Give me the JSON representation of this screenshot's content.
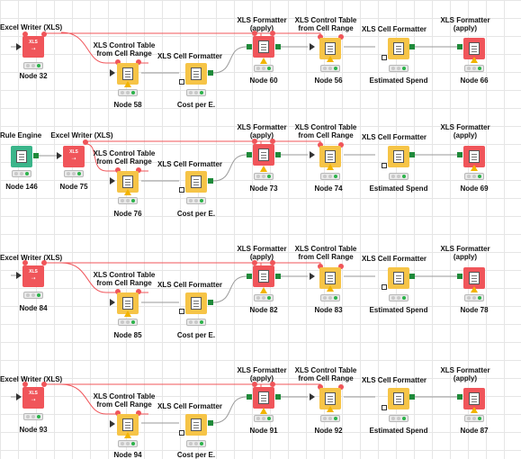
{
  "nodes": {
    "r1_writer_title": "Excel Writer (XLS)",
    "r1_writer_id": "Node 32",
    "r1_ctrl_title_1": "XLS Control Table",
    "r1_ctrl_title_2": "from Cell Range",
    "r1_ctrl_id": "Node 58",
    "r1_cellfmt_title": "XLS Cell Formatter",
    "r1_cellfmt_sub": "Cost per E.",
    "r1_apply_title_1": "XLS Formatter",
    "r1_apply_title_2": "(apply)",
    "r1_apply_id": "Node 60",
    "r1_ctrl2_title_1": "XLS Control Table",
    "r1_ctrl2_title_2": "from Cell Range",
    "r1_ctrl2_id": "Node 56",
    "r1_cellfmt2_title": "XLS Cell Formatter",
    "r1_cellfmt2_sub": "Estimated Spend",
    "r1_apply2_title_1": "XLS Formatter",
    "r1_apply2_title_2": "(apply)",
    "r1_apply2_id": "Node 66",
    "r2_rule_title": "Rule Engine",
    "r2_rule_id": "Node 146",
    "r2_writer_title": "Excel Writer (XLS)",
    "r2_writer_id": "Node 75",
    "r2_ctrl_title_1": "XLS Control Table",
    "r2_ctrl_title_2": "from Cell Range",
    "r2_ctrl_id": "Node 76",
    "r2_cellfmt_title": "XLS Cell Formatter",
    "r2_cellfmt_sub": "Cost per E.",
    "r2_apply_title_1": "XLS Formatter",
    "r2_apply_title_2": "(apply)",
    "r2_apply_id": "Node 73",
    "r2_ctrl2_title_1": "XLS Control Table",
    "r2_ctrl2_title_2": "from Cell Range",
    "r2_ctrl2_id": "Node 74",
    "r2_cellfmt2_title": "XLS Cell Formatter",
    "r2_cellfmt2_sub": "Estimated Spend",
    "r2_apply2_title_1": "XLS Formatter",
    "r2_apply2_title_2": "(apply)",
    "r2_apply2_id": "Node 69",
    "r3_writer_title": "Excel Writer (XLS)",
    "r3_writer_id": "Node 84",
    "r3_ctrl_title_1": "XLS Control Table",
    "r3_ctrl_title_2": "from Cell Range",
    "r3_ctrl_id": "Node 85",
    "r3_cellfmt_title": "XLS Cell Formatter",
    "r3_cellfmt_sub": "Cost per E.",
    "r3_apply_title_1": "XLS Formatter",
    "r3_apply_title_2": "(apply)",
    "r3_apply_id": "Node 82",
    "r3_ctrl2_title_1": "XLS Control Table",
    "r3_ctrl2_title_2": "from Cell Range",
    "r3_ctrl2_id": "Node 83",
    "r3_cellfmt2_title": "XLS Cell Formatter",
    "r3_cellfmt2_sub": "Estimated Spend",
    "r3_apply2_title_1": "XLS Formatter",
    "r3_apply2_title_2": "(apply)",
    "r3_apply2_id": "Node 78",
    "r4_writer_title": "Excel Writer (XLS)",
    "r4_writer_id": "Node 93",
    "r4_ctrl_title_1": "XLS Control Table",
    "r4_ctrl_title_2": "from Cell Range",
    "r4_ctrl_id": "Node 94",
    "r4_cellfmt_title": "XLS Cell Formatter",
    "r4_cellfmt_sub": "Cost per E.",
    "r4_apply_title_1": "XLS Formatter",
    "r4_apply_title_2": "(apply)",
    "r4_apply_id": "Node 91",
    "r4_ctrl2_title_1": "XLS Control Table",
    "r4_ctrl2_title_2": "from Cell Range",
    "r4_ctrl2_id": "Node 92",
    "r4_cellfmt2_title": "XLS Cell Formatter",
    "r4_cellfmt2_sub": "Estimated Spend",
    "r4_apply2_title_1": "XLS Formatter",
    "r4_apply2_title_2": "(apply)",
    "r4_apply2_id": "Node 87"
  },
  "icons": {
    "xls_word": "XLS",
    "xls_arrow": "⇢",
    "rule_engine": "rule-engine-icon",
    "excel_writer": "excel-writer-icon",
    "control_table": "control-table-icon",
    "cell_formatter": "cell-formatter-icon",
    "formatter_apply": "formatter-apply-icon"
  },
  "colors": {
    "writer": "#f0555a",
    "manipulator": "#f6c447",
    "rule_engine": "#3bb58a",
    "flow_variable_wire": "#f0555a",
    "data_wire": "#9a9a9a"
  }
}
